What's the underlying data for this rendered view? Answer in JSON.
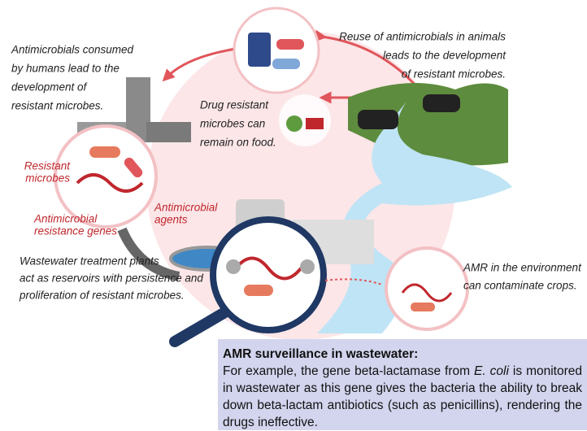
{
  "labels": {
    "humans": [
      "Antimicrobials consumed",
      "by humans lead to the",
      "development of",
      "resistant microbes."
    ],
    "animals": [
      "Reuse of antimicrobials in animals",
      "leads to the development",
      "of resistant microbes."
    ],
    "food": [
      "Drug resistant",
      "microbes can",
      "remain on food."
    ],
    "resistant_microbes": [
      "Resistant",
      "microbes"
    ],
    "agents": [
      "Antimicrobial",
      "agents"
    ],
    "genes": [
      "Antimicrobial",
      "resistance genes"
    ],
    "wastewater": [
      "Wastewater treatment plants",
      "act as reservoirs with persistence and",
      "proliferation of resistant microbes."
    ],
    "environment": [
      "AMR in the environment",
      "can contaminate crops."
    ]
  },
  "callout": {
    "title": "AMR surveillance in wastewater:",
    "body": [
      "For example, the gene beta-lactamase from ",
      "E. coli",
      " is monitored in wastewater as this gene gives the bacteria the ability to break down beta-lactam antibiotics (such as penicillins), rendering the drugs ineffective."
    ]
  }
}
